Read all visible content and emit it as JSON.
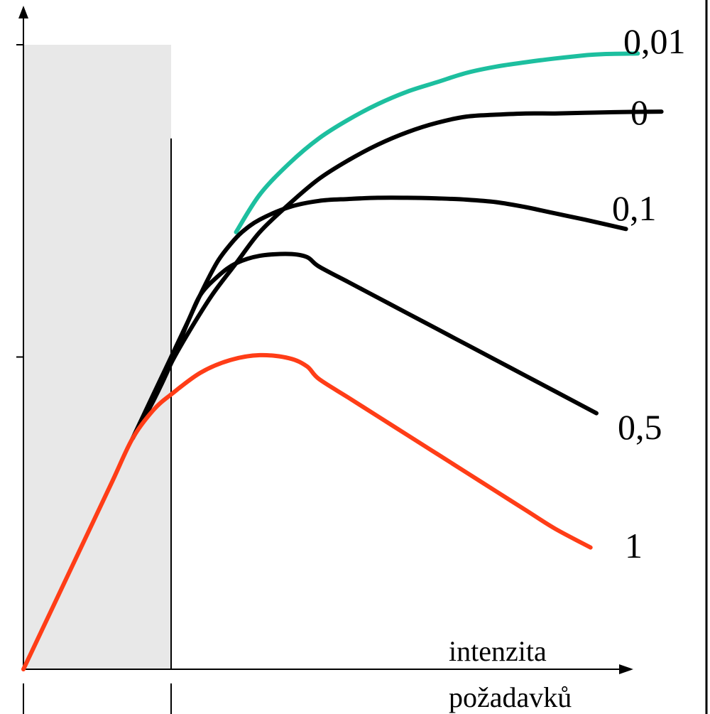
{
  "chart_data": {
    "type": "line",
    "title": "",
    "xlabel": "intenzita požadavků",
    "xlabel_lines": [
      "intenzita",
      "požadavků"
    ],
    "ylabel": "",
    "xlim": [
      0,
      100
    ],
    "ylim": [
      0,
      100
    ],
    "y_ticks": [
      50,
      100
    ],
    "grid": false,
    "legend": "none",
    "shaded_region": {
      "x_from": 0,
      "x_to": 25,
      "color": "#e8e8e8"
    },
    "vertical_marker": {
      "x": 25,
      "y_to": 85
    },
    "series": [
      {
        "name": "0,01",
        "color": "#1dbf9f",
        "x": [
          36,
          40,
          45,
          50,
          55,
          60,
          65,
          70,
          75,
          80,
          85,
          90,
          95,
          98,
          104
        ],
        "y": [
          70,
          76,
          81,
          85,
          88,
          90.5,
          92.5,
          94,
          95.5,
          96.5,
          97.2,
          97.8,
          98.3,
          98.5,
          98.6
        ]
      },
      {
        "name": "0",
        "color": "#000000",
        "x": [
          18.5,
          22,
          25,
          28,
          32,
          36,
          40,
          45,
          50,
          55,
          60,
          65,
          70,
          75,
          80,
          85,
          90,
          95,
          100,
          108
        ],
        "y": [
          37,
          43,
          49,
          54,
          60,
          65,
          70,
          74.5,
          78.5,
          81.5,
          84,
          86,
          87.5,
          88.5,
          88.8,
          89,
          89,
          89.1,
          89.2,
          89.3
        ]
      },
      {
        "name": "0,1",
        "color": "#000000",
        "x": [
          18.5,
          22,
          25,
          28,
          31,
          33,
          35,
          37,
          40,
          45,
          50,
          55,
          60,
          65,
          70,
          75,
          80,
          85,
          90,
          95,
          102
        ],
        "y": [
          37,
          43,
          49,
          56,
          62,
          65.5,
          68,
          70,
          72,
          74,
          75,
          75.3,
          75.5,
          75.5,
          75.4,
          75.2,
          74.8,
          74,
          73,
          72,
          70.5
        ]
      },
      {
        "name": "0,5",
        "color": "#000000",
        "x": [
          18.5,
          22,
          25,
          28,
          30,
          33,
          36,
          40,
          45,
          48,
          50,
          55,
          60,
          65,
          70,
          75,
          80,
          85,
          90,
          97
        ],
        "y": [
          37,
          44,
          50,
          56,
          60,
          63,
          65,
          66.2,
          66.5,
          66,
          64.5,
          62,
          59.5,
          57,
          54.5,
          52,
          49.5,
          47,
          44.5,
          41
        ]
      },
      {
        "name": "1",
        "color": "#ff3d17",
        "x": [
          0,
          5,
          10,
          15,
          18.5,
          22,
          25,
          30,
          35,
          40,
          45,
          48,
          50,
          55,
          60,
          65,
          70,
          75,
          80,
          85,
          90,
          96
        ],
        "y": [
          0,
          10,
          20,
          30,
          37,
          41.5,
          44,
          47.5,
          49.5,
          50.3,
          49.8,
          48.5,
          46.5,
          43.5,
          40.5,
          37.5,
          34.5,
          31.5,
          28.5,
          25.5,
          22.5,
          19.5
        ]
      }
    ]
  }
}
